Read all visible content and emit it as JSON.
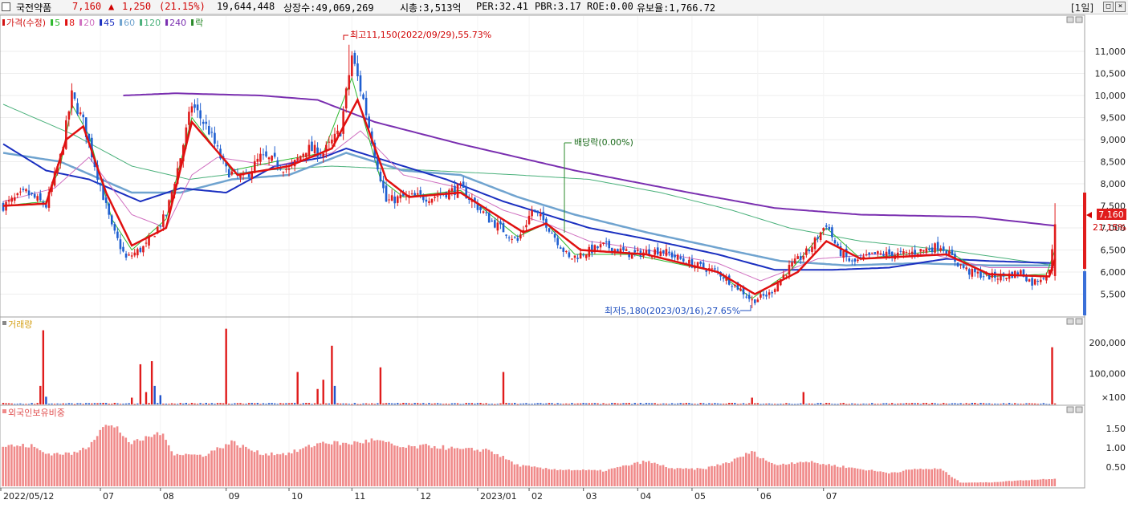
{
  "header": {
    "stock_name": "국전약품",
    "price": "7,160",
    "change_arrow": "▲",
    "change": "1,250",
    "change_rate": "(21.15%)",
    "volume": "19,644,448",
    "listed_shares": "상장수:49,069,269",
    "market_cap": "시총:3,513억",
    "per": "PER:32.41",
    "pbr": "PBR:3.17",
    "roe": "ROE:0.00",
    "float_rate": "유보율:1,766.72",
    "period": "[1일]"
  },
  "price_panel": {
    "legend": [
      {
        "label": "가격(수정)",
        "color": "#d21414"
      },
      {
        "label": "5",
        "color": "#2eb82e"
      },
      {
        "label": "8",
        "color": "#e01010"
      },
      {
        "label": "20",
        "color": "#d070c0"
      },
      {
        "label": "45",
        "color": "#1a2fc0"
      },
      {
        "label": "60",
        "color": "#6fa3cf"
      },
      {
        "label": "120",
        "color": "#49b07a"
      },
      {
        "label": "240",
        "color": "#7a2fb0"
      },
      {
        "label": "락",
        "color": "#2a8a2a"
      }
    ],
    "annotation_high": "최고11,150(2022/09/29),55.73%",
    "annotation_low": "최저5,180(2023/03/16),27.65%",
    "annotation_dividend": "배당락(0.00%)",
    "current_price_tag": "7,160",
    "current_change_tag": "21.15%"
  },
  "volume_panel": {
    "title": "거래량",
    "unit_label": "×100"
  },
  "foreign_panel": {
    "title": "외국인보유비중"
  },
  "colors": {
    "up": "#e01c1c",
    "down": "#1f5fd0",
    "volume_bar": "#e86060",
    "volume_down": "#2255cc",
    "foreign_bar": "#f08a8a"
  },
  "chart_data": [
    {
      "type": "candlestick",
      "title": "가격(수정)",
      "x_ticks": [
        "2022/05/12",
        "07",
        "08",
        "09",
        "10",
        "11",
        "12",
        "2023/01",
        "02",
        "03",
        "04",
        "05",
        "06",
        "07"
      ],
      "ylim": [
        5000,
        11800
      ],
      "y_ticks": [
        5500,
        6000,
        6500,
        7000,
        7500,
        8000,
        8500,
        9000,
        9500,
        10000,
        10500,
        11000
      ],
      "y_tick_labels": [
        "5,500",
        "6,000",
        "6,500",
        "7,000",
        "7,500",
        "8,000",
        "8,500",
        "9,000",
        "9,500",
        "10,000",
        "10,500",
        "11,000"
      ],
      "close_keypoints": [
        [
          0,
          7500
        ],
        [
          8,
          7800
        ],
        [
          15,
          7500
        ],
        [
          20,
          8600
        ],
        [
          24,
          10000
        ],
        [
          28,
          9400
        ],
        [
          33,
          8200
        ],
        [
          38,
          7000
        ],
        [
          43,
          6300
        ],
        [
          50,
          6600
        ],
        [
          57,
          7300
        ],
        [
          62,
          8600
        ],
        [
          66,
          9800
        ],
        [
          72,
          9200
        ],
        [
          78,
          8300
        ],
        [
          84,
          8100
        ],
        [
          90,
          8600
        ],
        [
          95,
          8500
        ],
        [
          100,
          8300
        ],
        [
          106,
          8800
        ],
        [
          112,
          8700
        ],
        [
          118,
          9200
        ],
        [
          122,
          10900
        ],
        [
          126,
          9900
        ],
        [
          130,
          8700
        ],
        [
          134,
          7600
        ],
        [
          140,
          7700
        ],
        [
          150,
          7700
        ],
        [
          160,
          7900
        ],
        [
          170,
          7200
        ],
        [
          180,
          6700
        ],
        [
          185,
          7400
        ],
        [
          190,
          7100
        ],
        [
          198,
          6300
        ],
        [
          210,
          6600
        ],
        [
          220,
          6400
        ],
        [
          230,
          6500
        ],
        [
          240,
          6200
        ],
        [
          250,
          6000
        ],
        [
          258,
          5600
        ],
        [
          262,
          5350
        ],
        [
          268,
          5500
        ],
        [
          275,
          6100
        ],
        [
          282,
          6500
        ],
        [
          288,
          7100
        ],
        [
          292,
          6500
        ],
        [
          297,
          6200
        ],
        [
          305,
          6400
        ],
        [
          315,
          6400
        ],
        [
          322,
          6500
        ],
        [
          328,
          6600
        ],
        [
          334,
          6200
        ],
        [
          338,
          6000
        ],
        [
          345,
          5900
        ],
        [
          350,
          5900
        ],
        [
          356,
          6000
        ],
        [
          360,
          5750
        ],
        [
          366,
          6000
        ],
        [
          368,
          7160
        ]
      ],
      "ma": [
        {
          "name": "5",
          "keypoints": [
            [
              0,
              7500
            ],
            [
              15,
              7600
            ],
            [
              20,
              8400
            ],
            [
              24,
              9800
            ],
            [
              30,
              9100
            ],
            [
              38,
              7200
            ],
            [
              45,
              6500
            ],
            [
              57,
              7200
            ],
            [
              66,
              9500
            ],
            [
              80,
              8300
            ],
            [
              95,
              8500
            ],
            [
              112,
              8700
            ],
            [
              122,
              10400
            ],
            [
              132,
              8100
            ],
            [
              140,
              7700
            ],
            [
              160,
              7850
            ],
            [
              180,
              6800
            ],
            [
              190,
              7100
            ],
            [
              200,
              6400
            ],
            [
              220,
              6400
            ],
            [
              250,
              6000
            ],
            [
              262,
              5400
            ],
            [
              275,
              6000
            ],
            [
              288,
              7000
            ],
            [
              300,
              6300
            ],
            [
              330,
              6500
            ],
            [
              345,
              5900
            ],
            [
              365,
              5950
            ],
            [
              368,
              6500
            ]
          ]
        },
        {
          "name": "8",
          "keypoints": [
            [
              0,
              7500
            ],
            [
              15,
              7550
            ],
            [
              22,
              9000
            ],
            [
              28,
              9300
            ],
            [
              36,
              7800
            ],
            [
              45,
              6600
            ],
            [
              57,
              7000
            ],
            [
              66,
              9400
            ],
            [
              82,
              8200
            ],
            [
              100,
              8400
            ],
            [
              115,
              8800
            ],
            [
              124,
              9900
            ],
            [
              134,
              8100
            ],
            [
              142,
              7700
            ],
            [
              160,
              7800
            ],
            [
              182,
              6900
            ],
            [
              190,
              7100
            ],
            [
              202,
              6500
            ],
            [
              225,
              6400
            ],
            [
              250,
              6000
            ],
            [
              263,
              5500
            ],
            [
              278,
              6000
            ],
            [
              288,
              6700
            ],
            [
              300,
              6300
            ],
            [
              330,
              6400
            ],
            [
              345,
              5950
            ],
            [
              366,
              5900
            ],
            [
              368,
              6300
            ]
          ]
        },
        {
          "name": "20",
          "keypoints": [
            [
              0,
              7600
            ],
            [
              18,
              7900
            ],
            [
              30,
              8600
            ],
            [
              45,
              7300
            ],
            [
              57,
              7000
            ],
            [
              66,
              8200
            ],
            [
              75,
              8600
            ],
            [
              95,
              8400
            ],
            [
              115,
              8700
            ],
            [
              125,
              9200
            ],
            [
              140,
              8200
            ],
            [
              160,
              7900
            ],
            [
              175,
              7400
            ],
            [
              190,
              7100
            ],
            [
              205,
              6700
            ],
            [
              225,
              6500
            ],
            [
              250,
              6200
            ],
            [
              265,
              5800
            ],
            [
              285,
              6300
            ],
            [
              305,
              6400
            ],
            [
              325,
              6400
            ],
            [
              345,
              6100
            ],
            [
              368,
              6100
            ]
          ]
        },
        {
          "name": "45",
          "keypoints": [
            [
              0,
              8900
            ],
            [
              15,
              8300
            ],
            [
              30,
              8100
            ],
            [
              48,
              7600
            ],
            [
              62,
              7900
            ],
            [
              78,
              7800
            ],
            [
              95,
              8400
            ],
            [
              112,
              8600
            ],
            [
              120,
              8800
            ],
            [
              135,
              8500
            ],
            [
              155,
              8100
            ],
            [
              175,
              7600
            ],
            [
              190,
              7300
            ],
            [
              205,
              7000
            ],
            [
              225,
              6750
            ],
            [
              250,
              6400
            ],
            [
              270,
              6050
            ],
            [
              290,
              6050
            ],
            [
              310,
              6100
            ],
            [
              330,
              6300
            ],
            [
              345,
              6250
            ],
            [
              368,
              6200
            ]
          ]
        },
        {
          "name": "60",
          "keypoints": [
            [
              0,
              8700
            ],
            [
              20,
              8500
            ],
            [
              45,
              7800
            ],
            [
              62,
              7800
            ],
            [
              80,
              8100
            ],
            [
              100,
              8200
            ],
            [
              120,
              8700
            ],
            [
              140,
              8300
            ],
            [
              160,
              8200
            ],
            [
              180,
              7700
            ],
            [
              200,
              7300
            ],
            [
              225,
              6900
            ],
            [
              250,
              6550
            ],
            [
              272,
              6250
            ],
            [
              295,
              6150
            ],
            [
              320,
              6200
            ],
            [
              345,
              6150
            ],
            [
              368,
              6150
            ]
          ]
        },
        {
          "name": "120",
          "keypoints": [
            [
              0,
              9800
            ],
            [
              25,
              9100
            ],
            [
              45,
              8400
            ],
            [
              65,
              8100
            ],
            [
              90,
              8300
            ],
            [
              115,
              8400
            ],
            [
              150,
              8300
            ],
            [
              180,
              8200
            ],
            [
              205,
              8100
            ],
            [
              230,
              7800
            ],
            [
              255,
              7400
            ],
            [
              275,
              7000
            ],
            [
              300,
              6700
            ],
            [
              330,
              6500
            ],
            [
              368,
              6150
            ]
          ]
        },
        {
          "name": "240",
          "keypoints": [
            [
              42,
              10000
            ],
            [
              60,
              10050
            ],
            [
              90,
              10000
            ],
            [
              110,
              9900
            ],
            [
              130,
              9400
            ],
            [
              160,
              8900
            ],
            [
              200,
              8300
            ],
            [
              240,
              7800
            ],
            [
              270,
              7450
            ],
            [
              300,
              7300
            ],
            [
              340,
              7250
            ],
            [
              368,
              7050
            ]
          ]
        }
      ]
    },
    {
      "type": "bar",
      "title": "거래량",
      "ylim": [
        0,
        270000
      ],
      "y_ticks": [
        100000,
        200000
      ],
      "y_tick_labels": [
        "100,000",
        "200,000"
      ],
      "baseline": 2500,
      "spikes": [
        [
          13,
          60000,
          "up"
        ],
        [
          14,
          240000,
          "up"
        ],
        [
          15,
          25000,
          "down"
        ],
        [
          45,
          22000,
          "up"
        ],
        [
          48,
          130000,
          "up"
        ],
        [
          50,
          40000,
          "up"
        ],
        [
          52,
          140000,
          "up"
        ],
        [
          53,
          60000,
          "down"
        ],
        [
          55,
          30000,
          "down"
        ],
        [
          78,
          245000,
          "up"
        ],
        [
          103,
          105000,
          "up"
        ],
        [
          110,
          50000,
          "up"
        ],
        [
          112,
          80000,
          "up"
        ],
        [
          115,
          190000,
          "up"
        ],
        [
          116,
          60000,
          "down"
        ],
        [
          132,
          120000,
          "up"
        ],
        [
          175,
          105000,
          "up"
        ],
        [
          262,
          22000,
          "up"
        ],
        [
          280,
          40000,
          "up"
        ],
        [
          367,
          185000,
          "up"
        ]
      ]
    },
    {
      "type": "bar",
      "title": "외국인보유비중",
      "ylim": [
        0,
        2.0
      ],
      "y_ticks": [
        0.5,
        1.0,
        1.5
      ],
      "y_tick_labels": [
        "0.50",
        "1.00",
        "1.50"
      ],
      "keypoints": [
        [
          0,
          1.05
        ],
        [
          10,
          1.05
        ],
        [
          15,
          0.85
        ],
        [
          25,
          0.85
        ],
        [
          30,
          1.05
        ],
        [
          35,
          1.6
        ],
        [
          40,
          1.5
        ],
        [
          45,
          1.1
        ],
        [
          55,
          1.4
        ],
        [
          60,
          0.85
        ],
        [
          70,
          0.8
        ],
        [
          80,
          1.15
        ],
        [
          90,
          0.85
        ],
        [
          100,
          0.85
        ],
        [
          112,
          1.15
        ],
        [
          120,
          1.1
        ],
        [
          130,
          1.2
        ],
        [
          140,
          1.0
        ],
        [
          150,
          1.05
        ],
        [
          160,
          0.95
        ],
        [
          170,
          0.95
        ],
        [
          180,
          0.55
        ],
        [
          190,
          0.45
        ],
        [
          210,
          0.4
        ],
        [
          225,
          0.65
        ],
        [
          235,
          0.45
        ],
        [
          245,
          0.45
        ],
        [
          255,
          0.65
        ],
        [
          262,
          0.9
        ],
        [
          270,
          0.55
        ],
        [
          280,
          0.65
        ],
        [
          290,
          0.55
        ],
        [
          300,
          0.45
        ],
        [
          310,
          0.35
        ],
        [
          320,
          0.45
        ],
        [
          328,
          0.45
        ],
        [
          335,
          0.1
        ],
        [
          345,
          0.1
        ],
        [
          355,
          0.15
        ],
        [
          368,
          0.2
        ]
      ]
    }
  ]
}
